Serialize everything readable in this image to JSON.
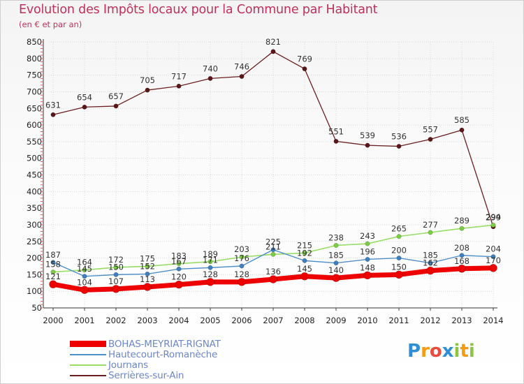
{
  "title": "Evolution des Impôts locaux pour la Commune par Habitant",
  "subtitle": "(en € et par an)",
  "logo": {
    "p": "P",
    "r": "r",
    "o": "o",
    "x": "x",
    "i": "i",
    "t": "t",
    "i2": "i"
  },
  "chart_data": {
    "type": "line",
    "x": [
      "2000",
      "2001",
      "2002",
      "2003",
      "2004",
      "2005",
      "2006",
      "2007",
      "2008",
      "2009",
      "2010",
      "2011",
      "2012",
      "2013",
      "2014"
    ],
    "ylim": [
      50,
      850
    ],
    "yticks": [
      50,
      100,
      150,
      200,
      250,
      300,
      350,
      400,
      450,
      500,
      550,
      600,
      650,
      700,
      750,
      800,
      850
    ],
    "grid": true,
    "legend_position": "bottom-left",
    "series": [
      {
        "name": "BOHAS-MEYRIAT-RIGNAT",
        "color": "#ee0000",
        "width": 7,
        "values": [
          121,
          104,
          107,
          113,
          120,
          128,
          128,
          136,
          145,
          140,
          148,
          150,
          162,
          168,
          170
        ]
      },
      {
        "name": "Hautecourt-Romanèche",
        "color": "#4f8fc8",
        "width": 1.4,
        "values": [
          187,
          145,
          150,
          152,
          167,
          171,
          176,
          225,
          192,
          185,
          196,
          200,
          185,
          208,
          204
        ]
      },
      {
        "name": "Journans",
        "color": "#99dd66",
        "width": 1.6,
        "values": [
          158,
          164,
          172,
          175,
          183,
          189,
          203,
          211,
          215,
          238,
          243,
          265,
          277,
          289,
          299
        ]
      },
      {
        "name": "Serrières-sur-Ain",
        "color": "#6b1e20",
        "width": 1.3,
        "values": [
          631,
          654,
          657,
          705,
          717,
          740,
          746,
          821,
          769,
          551,
          539,
          536,
          557,
          585,
          294
        ]
      }
    ],
    "data_labels": {
      "BOHAS-MEYRIAT-RIGNAT": [
        "121",
        "104",
        "107",
        "113",
        "120",
        "128",
        "128",
        "136",
        "145",
        "140",
        "148",
        "150",
        "162",
        "168",
        "170"
      ],
      "Hautecourt-Romanèche": [
        "187",
        "145",
        "150",
        "152",
        "167",
        "171",
        "176",
        "225",
        "192",
        "185",
        "196",
        "200",
        "185",
        "208",
        "204"
      ],
      "Journans": [
        "158",
        "164",
        "172",
        "175",
        "183",
        "189",
        "203",
        "211",
        "215",
        "238",
        "243",
        "265",
        "277",
        "289",
        "299"
      ],
      "Serrières-sur-Ain": [
        "631",
        "654",
        "657",
        "705",
        "717",
        "740",
        "746",
        "821",
        "769",
        "551",
        "539",
        "536",
        "557",
        "585",
        "294"
      ]
    }
  }
}
